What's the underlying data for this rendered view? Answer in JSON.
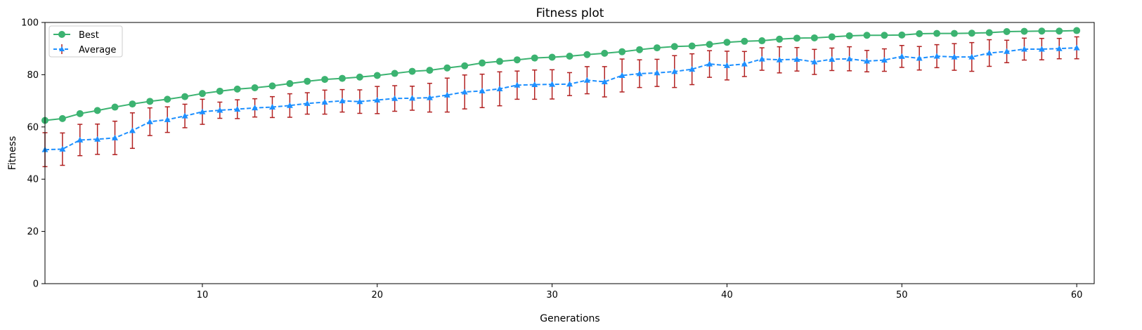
{
  "chart_data": {
    "type": "line",
    "title": "Fitness plot",
    "xlabel": "Generations",
    "ylabel": "Fitness",
    "xlim": [
      1,
      61
    ],
    "ylim": [
      0,
      100
    ],
    "xticks": [
      10,
      20,
      30,
      40,
      50,
      60
    ],
    "yticks": [
      0,
      20,
      40,
      60,
      80,
      100
    ],
    "grid": false,
    "legend_position": "top-left",
    "x": [
      1,
      2,
      3,
      4,
      5,
      6,
      7,
      8,
      9,
      10,
      11,
      12,
      13,
      14,
      15,
      16,
      17,
      18,
      19,
      20,
      21,
      22,
      23,
      24,
      25,
      26,
      27,
      28,
      29,
      30,
      31,
      32,
      33,
      34,
      35,
      36,
      37,
      38,
      39,
      40,
      41,
      42,
      43,
      44,
      45,
      46,
      47,
      48,
      49,
      50,
      51,
      52,
      53,
      54,
      55,
      56,
      57,
      58,
      59,
      60
    ],
    "series": [
      {
        "name": "Best",
        "color": "#3cb371",
        "style": "solid",
        "marker": "circle",
        "values": [
          62.5,
          63.2,
          65.1,
          66.3,
          67.6,
          68.8,
          69.8,
          70.6,
          71.6,
          72.8,
          73.7,
          74.5,
          75.0,
          75.7,
          76.6,
          77.5,
          78.2,
          78.6,
          79.1,
          79.7,
          80.5,
          81.3,
          81.7,
          82.6,
          83.4,
          84.5,
          85.1,
          85.7,
          86.4,
          86.7,
          87.1,
          87.7,
          88.2,
          88.8,
          89.6,
          90.3,
          90.8,
          91.0,
          91.6,
          92.4,
          92.8,
          93.0,
          93.6,
          94.0,
          94.1,
          94.5,
          94.9,
          95.1,
          95.1,
          95.2,
          95.7,
          95.8,
          95.8,
          95.9,
          96.1,
          96.5,
          96.6,
          96.7,
          96.7,
          96.9
        ]
      },
      {
        "name": "Average",
        "color": "#1e90ff",
        "style": "dashed",
        "marker": "triangle",
        "error_color": "#b22222",
        "values": [
          51.3,
          51.5,
          55.0,
          55.3,
          55.8,
          58.6,
          62.0,
          62.8,
          64.2,
          65.8,
          66.4,
          66.8,
          67.3,
          67.6,
          68.2,
          69.0,
          69.5,
          70.0,
          69.7,
          70.3,
          70.9,
          71.0,
          71.2,
          72.2,
          73.4,
          73.8,
          74.6,
          76.0,
          76.2,
          76.3,
          76.4,
          77.9,
          77.3,
          79.7,
          80.4,
          80.7,
          81.2,
          82.1,
          84.1,
          83.5,
          84.1,
          86.0,
          85.7,
          85.9,
          84.9,
          85.9,
          86.1,
          85.2,
          85.6,
          87.0,
          86.3,
          87.1,
          86.8,
          86.8,
          88.3,
          88.9,
          89.8,
          89.8,
          90.0,
          90.3
        ],
        "error": [
          6.5,
          6.2,
          6.0,
          5.8,
          6.4,
          6.8,
          5.3,
          4.9,
          4.5,
          4.8,
          3.1,
          3.6,
          3.5,
          4.0,
          4.5,
          4.1,
          4.6,
          4.3,
          4.5,
          5.2,
          4.9,
          4.6,
          5.5,
          6.5,
          6.5,
          6.4,
          6.5,
          5.4,
          5.6,
          5.6,
          4.4,
          5.2,
          5.8,
          6.3,
          5.3,
          5.2,
          6.1,
          5.9,
          5.1,
          5.5,
          4.8,
          4.3,
          5.0,
          4.5,
          4.8,
          4.3,
          4.6,
          4.1,
          4.3,
          4.2,
          4.5,
          4.4,
          5.1,
          5.5,
          5.1,
          4.3,
          4.2,
          4.1,
          3.9,
          4.2
        ]
      }
    ]
  }
}
